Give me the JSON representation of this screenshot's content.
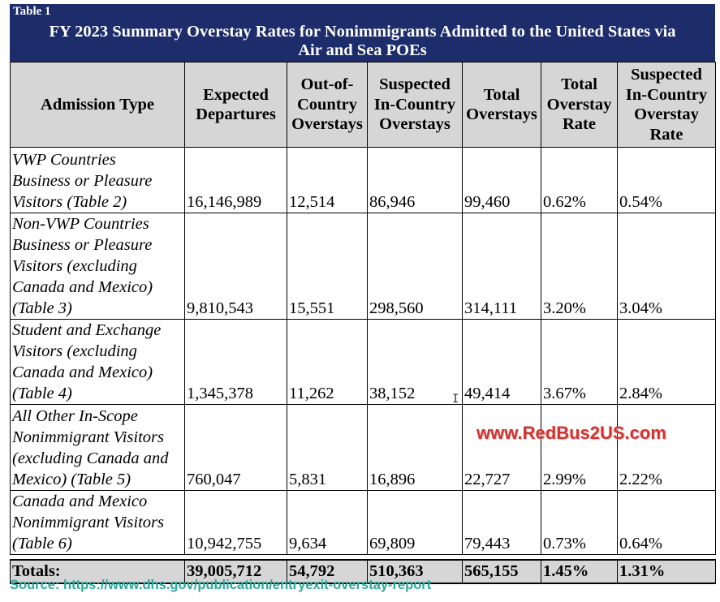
{
  "banner": {
    "label": "Table 1",
    "title_line1": "FY 2023 Summary Overstay Rates for Nonimmigrants Admitted to the United States via",
    "title_line2": "Air and Sea POEs"
  },
  "columns": [
    [
      "Admission Type"
    ],
    [
      "Expected",
      "Departures"
    ],
    [
      "Out-of-",
      "Country",
      "Overstays"
    ],
    [
      "Suspected",
      "In-Country",
      "Overstays"
    ],
    [
      "Total",
      "Overstays"
    ],
    [
      "Total",
      "Overstay",
      "Rate"
    ],
    [
      "Suspected",
      "In-Country",
      "Overstay",
      "Rate"
    ]
  ],
  "rows": [
    {
      "type": [
        "VWP Countries",
        "Business or Pleasure",
        "Visitors (Table 2)"
      ],
      "expected": "16,146,989",
      "out_country": "12,514",
      "in_country": "86,946",
      "total": "99,460",
      "rate": "0.62%",
      "in_rate": "0.54%"
    },
    {
      "type": [
        "Non-VWP Countries",
        "Business or Pleasure",
        "Visitors (excluding",
        "Canada and Mexico)",
        "(Table 3)"
      ],
      "expected": "9,810,543",
      "out_country": "15,551",
      "in_country": "298,560",
      "total": "314,111",
      "rate": "3.20%",
      "in_rate": "3.04%"
    },
    {
      "type": [
        "Student and Exchange",
        "Visitors (excluding",
        "Canada and Mexico)",
        "(Table 4)"
      ],
      "expected": "1,345,378",
      "out_country": "11,262",
      "in_country": "38,152",
      "total": "49,414",
      "rate": "3.67%",
      "in_rate": "2.84%"
    },
    {
      "type": [
        "All Other In-Scope",
        "Nonimmigrant Visitors",
        "(excluding Canada and",
        "Mexico) (Table 5)"
      ],
      "expected": "760,047",
      "out_country": "5,831",
      "in_country": "16,896",
      "total": "22,727",
      "rate": "2.99%",
      "in_rate": "2.22%"
    },
    {
      "type": [
        "Canada and Mexico",
        "Nonimmigrant Visitors",
        "(Table 6)"
      ],
      "expected": "10,942,755",
      "out_country": "9,634",
      "in_country": "69,809",
      "total": "79,443",
      "rate": "0.73%",
      "in_rate": "0.64%"
    }
  ],
  "totals": {
    "label": "Totals:",
    "expected": "39,005,712",
    "out_country": "54,792",
    "in_country": "510,363",
    "total": "565,155",
    "rate": "1.45%",
    "in_rate": "1.31%"
  },
  "watermark": "www.RedBus2US.com",
  "source": "Source: https://www.dhs.gov/publication/entryexit-overstay-report",
  "cursor_glyph": "I",
  "colors": {
    "banner_bg": "#1d2c6b",
    "header_bg": "#d6d6d6",
    "source_text": "#2ca89a",
    "watermark_text": "#d8312d"
  }
}
